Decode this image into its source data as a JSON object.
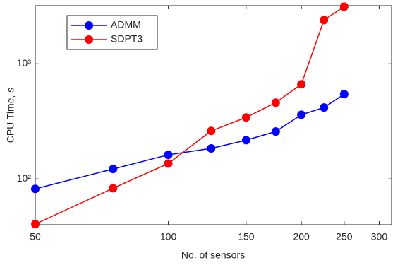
{
  "chart_data": {
    "type": "line",
    "x_label": "No. of sensors",
    "y_label": "CPU Time, s",
    "x": [
      50,
      75,
      100,
      125,
      150,
      175,
      200,
      225,
      250
    ],
    "series": [
      {
        "name": "ADMM",
        "color": "#0000ff",
        "values": [
          82,
          122,
          162,
          184,
          217,
          258,
          361,
          417,
          545
        ]
      },
      {
        "name": "SDPT3",
        "color": "#ff0000",
        "values": [
          40.5,
          83,
          136,
          261,
          342,
          460,
          664,
          2400,
          3140
        ]
      }
    ],
    "xlim": [
      50,
      320
    ],
    "xticks": [
      50,
      100,
      150,
      200,
      250,
      300
    ],
    "ylim": [
      40,
      3200
    ],
    "yticks": [
      {
        "value": 100,
        "label": "10²"
      },
      {
        "value": 1000,
        "label": "10³"
      }
    ],
    "xscale": "log",
    "yscale": "log",
    "grid": false,
    "legend": "upper left"
  }
}
